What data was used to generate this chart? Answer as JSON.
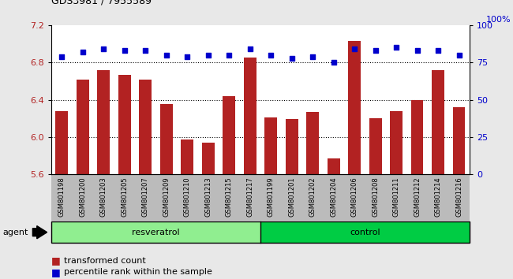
{
  "title": "GDS3981 / 7955589",
  "categories": [
    "GSM801198",
    "GSM801200",
    "GSM801203",
    "GSM801205",
    "GSM801207",
    "GSM801209",
    "GSM801210",
    "GSM801213",
    "GSM801215",
    "GSM801217",
    "GSM801199",
    "GSM801201",
    "GSM801202",
    "GSM801204",
    "GSM801206",
    "GSM801208",
    "GSM801211",
    "GSM801212",
    "GSM801214",
    "GSM801216"
  ],
  "bar_values": [
    6.28,
    6.62,
    6.72,
    6.67,
    6.62,
    6.35,
    5.97,
    5.94,
    6.44,
    6.85,
    6.21,
    6.19,
    6.27,
    5.77,
    7.03,
    6.2,
    6.28,
    6.4,
    6.72,
    6.32
  ],
  "dot_values": [
    79,
    82,
    84,
    83,
    83,
    80,
    79,
    80,
    80,
    84,
    80,
    78,
    79,
    75,
    84,
    83,
    85,
    83,
    83,
    80
  ],
  "resveratrol_count": 10,
  "control_count": 10,
  "ylim_left": [
    5.6,
    7.2
  ],
  "ylim_right": [
    0,
    100
  ],
  "yticks_left": [
    5.6,
    6.0,
    6.4,
    6.8,
    7.2
  ],
  "yticks_right": [
    0,
    25,
    50,
    75,
    100
  ],
  "bar_color": "#B22222",
  "dot_color": "#0000CC",
  "resveratrol_color": "#90EE90",
  "control_color": "#00CC44",
  "xtick_bg_color": "#BBBBBB",
  "plot_bg_color": "#FFFFFF",
  "fig_bg_color": "#E8E8E8",
  "agent_label": "agent",
  "resveratrol_label": "resveratrol",
  "control_label": "control",
  "legend_bar_label": "transformed count",
  "legend_dot_label": "percentile rank within the sample",
  "right_axis_label": "100%",
  "ybaseline": 5.6
}
